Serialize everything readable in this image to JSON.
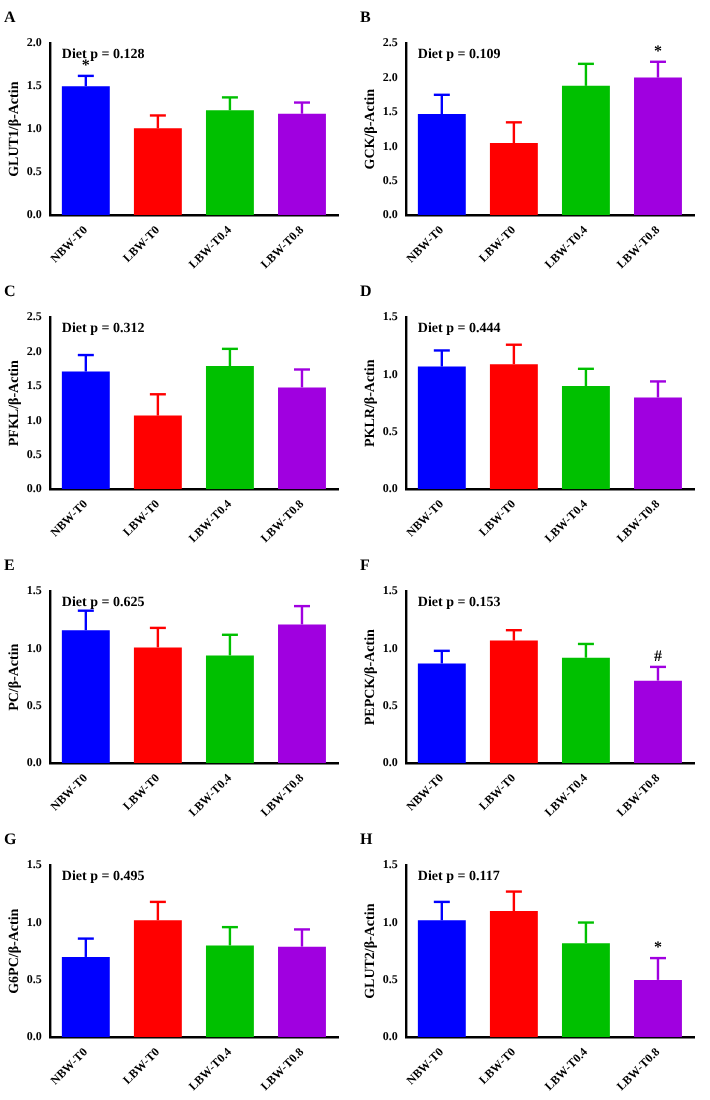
{
  "chart_data": [
    {
      "type": "bar",
      "title": "A",
      "ylabel": "GLUT1/β-Actin",
      "annotations": [
        "Diet p = 0.128",
        {
          "text": "*",
          "x": "NBW-T0",
          "y": 1.62
        }
      ],
      "categories": [
        "NBW-T0",
        "LBW-T0",
        "LBW-T0.4",
        "LBW-T0.8"
      ],
      "colors": [
        "#0000ff",
        "#ff0000",
        "#00c000",
        "#a000e0"
      ],
      "values": [
        1.5,
        1.01,
        1.22,
        1.18
      ],
      "errors": [
        [
          1.5,
          1.62
        ],
        [
          1.01,
          1.16
        ],
        [
          1.22,
          1.37
        ],
        [
          1.18,
          1.31
        ]
      ],
      "ylim": [
        0,
        2
      ],
      "yticks": [
        {
          "value": 0,
          "label": "0.0"
        },
        0.5,
        {
          "value": 1,
          "label": "1.0"
        },
        1.5,
        {
          "value": 2,
          "label": "2.0"
        }
      ],
      "grid": false,
      "legend": false
    },
    {
      "type": "bar",
      "title": "B",
      "ylabel": "GCK/β-Actin",
      "annotations": [
        "Diet p = 0.109",
        {
          "text": "*",
          "x": "LBW-T0.8",
          "y": 2.23
        }
      ],
      "categories": [
        "NBW-T0",
        "LBW-T0",
        "LBW-T0.4",
        "LBW-T0.8"
      ],
      "colors": [
        "#0000ff",
        "#ff0000",
        "#00c000",
        "#a000e0"
      ],
      "values": [
        1.47,
        1.05,
        1.88,
        2.0
      ],
      "errors": [
        [
          1.47,
          1.75
        ],
        [
          1.05,
          1.35
        ],
        [
          1.88,
          2.2
        ],
        [
          2.0,
          2.23
        ]
      ],
      "ylim": [
        0,
        2.5
      ],
      "yticks": [
        {
          "value": 0,
          "label": "0.0"
        },
        0.5,
        {
          "value": 1,
          "label": "1.0"
        },
        1.5,
        {
          "value": 2,
          "label": "2.0"
        },
        2.5
      ],
      "grid": false,
      "legend": false
    },
    {
      "type": "bar",
      "title": "C",
      "ylabel": "PFKL/β-Actin",
      "annotations": [
        "Diet p = 0.312"
      ],
      "categories": [
        "NBW-T0",
        "LBW-T0",
        "LBW-T0.4",
        "LBW-T0.8"
      ],
      "colors": [
        "#0000ff",
        "#ff0000",
        "#00c000",
        "#a000e0"
      ],
      "values": [
        1.71,
        1.07,
        1.79,
        1.48
      ],
      "errors": [
        [
          1.71,
          1.95
        ],
        [
          1.07,
          1.38
        ],
        [
          1.79,
          2.04
        ],
        [
          1.48,
          1.74
        ]
      ],
      "ylim": [
        0,
        2.5
      ],
      "yticks": [
        {
          "value": 0,
          "label": "0.0"
        },
        0.5,
        {
          "value": 1,
          "label": "1.0"
        },
        1.5,
        {
          "value": 2,
          "label": "2.0"
        },
        2.5
      ],
      "grid": false,
      "legend": false
    },
    {
      "type": "bar",
      "title": "D",
      "ylabel": "PKLR/β-Actin",
      "annotations": [
        "Diet p = 0.444"
      ],
      "categories": [
        "NBW-T0",
        "LBW-T0",
        "LBW-T0.4",
        "LBW-T0.8"
      ],
      "colors": [
        "#0000ff",
        "#ff0000",
        "#00c000",
        "#a000e0"
      ],
      "values": [
        1.07,
        1.09,
        0.9,
        0.8
      ],
      "errors": [
        [
          1.07,
          1.21
        ],
        [
          1.09,
          1.26
        ],
        [
          0.9,
          1.05
        ],
        [
          0.8,
          0.94
        ]
      ],
      "ylim": [
        0,
        1.5
      ],
      "yticks": [
        {
          "value": 0,
          "label": "0.0"
        },
        0.5,
        {
          "value": 1,
          "label": "1.0"
        },
        1.5
      ],
      "grid": false,
      "legend": false
    },
    {
      "type": "bar",
      "title": "E",
      "ylabel": "PC/β-Actin",
      "annotations": [
        "Diet p = 0.625"
      ],
      "categories": [
        "NBW-T0",
        "LBW-T0",
        "LBW-T0.4",
        "LBW-T0.8"
      ],
      "colors": [
        "#0000ff",
        "#ff0000",
        "#00c000",
        "#a000e0"
      ],
      "values": [
        1.16,
        1.01,
        0.94,
        1.21
      ],
      "errors": [
        [
          1.16,
          1.33
        ],
        [
          1.01,
          1.18
        ],
        [
          0.94,
          1.12
        ],
        [
          1.21,
          1.37
        ]
      ],
      "ylim": [
        0,
        1.5
      ],
      "yticks": [
        {
          "value": 0,
          "label": "0.0"
        },
        0.5,
        {
          "value": 1,
          "label": "1.0"
        },
        1.5
      ],
      "grid": false,
      "legend": false
    },
    {
      "type": "bar",
      "title": "F",
      "ylabel": "PEPCK/β-Actin",
      "annotations": [
        "Diet p = 0.153",
        {
          "text": "#",
          "x": "LBW-T0.8",
          "y": 0.84
        }
      ],
      "categories": [
        "NBW-T0",
        "LBW-T0",
        "LBW-T0.4",
        "LBW-T0.8"
      ],
      "colors": [
        "#0000ff",
        "#ff0000",
        "#00c000",
        "#a000e0"
      ],
      "values": [
        0.87,
        1.07,
        0.92,
        0.72
      ],
      "errors": [
        [
          0.87,
          0.98
        ],
        [
          1.07,
          1.16
        ],
        [
          0.92,
          1.04
        ],
        [
          0.72,
          0.84
        ]
      ],
      "ylim": [
        0,
        1.5
      ],
      "yticks": [
        {
          "value": 0,
          "label": "0.0"
        },
        0.5,
        {
          "value": 1,
          "label": "1.0"
        },
        1.5
      ],
      "grid": false,
      "legend": false
    },
    {
      "type": "bar",
      "title": "G",
      "ylabel": "G6PC/β-Actin",
      "annotations": [
        "Diet p = 0.495"
      ],
      "categories": [
        "NBW-T0",
        "LBW-T0",
        "LBW-T0.4",
        "LBW-T0.8"
      ],
      "colors": [
        "#0000ff",
        "#ff0000",
        "#00c000",
        "#a000e0"
      ],
      "values": [
        0.7,
        1.02,
        0.8,
        0.79
      ],
      "errors": [
        [
          0.7,
          0.86
        ],
        [
          1.02,
          1.18
        ],
        [
          0.8,
          0.96
        ],
        [
          0.79,
          0.94
        ]
      ],
      "ylim": [
        0,
        1.5
      ],
      "yticks": [
        {
          "value": 0,
          "label": "0.0"
        },
        0.5,
        {
          "value": 1,
          "label": "1.0"
        },
        1.5
      ],
      "grid": false,
      "legend": false
    },
    {
      "type": "bar",
      "title": "H",
      "ylabel": "GLUT2/β-Actin",
      "annotations": [
        "Diet p = 0.117",
        {
          "text": "*",
          "x": "LBW-T0.8",
          "y": 0.69
        }
      ],
      "categories": [
        "NBW-T0",
        "LBW-T0",
        "LBW-T0.4",
        "LBW-T0.8"
      ],
      "colors": [
        "#0000ff",
        "#ff0000",
        "#00c000",
        "#a000e0"
      ],
      "values": [
        1.02,
        1.1,
        0.82,
        0.5
      ],
      "errors": [
        [
          1.02,
          1.18
        ],
        [
          1.1,
          1.27
        ],
        [
          0.82,
          1.0
        ],
        [
          0.5,
          0.69
        ]
      ],
      "ylim": [
        0,
        1.5
      ],
      "yticks": [
        {
          "value": 0,
          "label": "0.0"
        },
        0.5,
        {
          "value": 1,
          "label": "1.0"
        },
        1.5
      ],
      "grid": false,
      "legend": false
    }
  ]
}
